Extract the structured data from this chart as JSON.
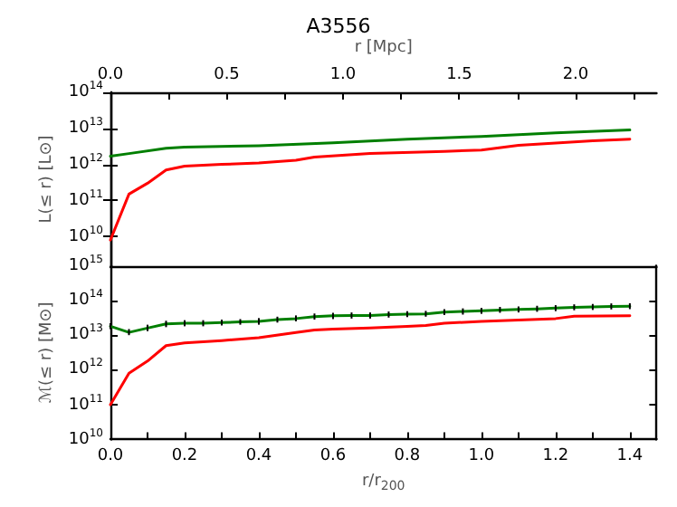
{
  "chart_data": [
    {
      "type": "line",
      "title": "A3556",
      "ylabel": "L(≤ r) [L⊙]",
      "x2label": "r [Mpc]",
      "log": "y",
      "marker": "none",
      "line_style": "solid",
      "tick_labels": "y",
      "xlim": [
        0,
        1.472
      ],
      "ylim": [
        1500000000.0,
        100000000000000.0
      ],
      "x2lim": [
        0,
        2.348
      ],
      "x2ticks": [
        {
          "value": 0,
          "label": "0.0"
        },
        {
          "value": 0.25,
          "label": null
        },
        0.5,
        {
          "value": 0.75,
          "label": null
        },
        {
          "value": 1,
          "label": "1.0"
        },
        {
          "value": 1.25,
          "label": null
        },
        1.5,
        {
          "value": 1.75,
          "label": null
        },
        {
          "value": 2,
          "label": "2.0"
        },
        {
          "value": 2.25,
          "label": null
        }
      ],
      "yticks": [
        {
          "value": 10000000000.0,
          "label": "10$^{10}$"
        },
        {
          "value": 100000000000.0,
          "label": "10$^{11}$"
        },
        {
          "value": 1000000000000.0,
          "label": "10$^{12}$"
        },
        {
          "value": 10000000000000.0,
          "label": "10$^{13}$"
        },
        {
          "value": 100000000000000.0,
          "label": "10$^{14}$"
        }
      ],
      "series": [
        {
          "color": "#007f00",
          "x": [
            0,
            0.05,
            0.15,
            0.2,
            0.4,
            0.6,
            0.8,
            1.0,
            1.2,
            1.4
          ],
          "values": [
            1700000000000.0,
            2000000000000.0,
            2800000000000.0,
            3000000000000.0,
            3300000000000.0,
            4000000000000.0,
            5000000000000.0,
            6000000000000.0,
            7500000000000.0,
            9000000000000.0
          ]
        },
        {
          "color": "#ff0000",
          "x": [
            0,
            0.05,
            0.1,
            0.15,
            0.2,
            0.3,
            0.4,
            0.5,
            0.55,
            0.7,
            0.9,
            1.0,
            1.1,
            1.3,
            1.4
          ],
          "values": [
            8000000000.0,
            150000000000.0,
            300000000000.0,
            700000000000.0,
            900000000000.0,
            1000000000000.0,
            1100000000000.0,
            1300000000000.0,
            1600000000000.0,
            2000000000000.0,
            2300000000000.0,
            2500000000000.0,
            3400000000000.0,
            4500000000000.0,
            5000000000000.0
          ]
        }
      ]
    },
    {
      "type": "line",
      "xlabel": "r/r$_{200}$",
      "ylabel": "ℳ(≤ r) [M⊙]",
      "log": "y",
      "marker": "none",
      "line_style": "solid",
      "xlim": [
        0,
        1.472
      ],
      "xticks": [
        {
          "value": 0,
          "label": "0.0"
        },
        {
          "value": 0.1,
          "label": null
        },
        0.2,
        {
          "value": 0.3,
          "label": null
        },
        0.4,
        {
          "value": 0.5,
          "label": null
        },
        0.6,
        {
          "value": 0.7,
          "label": null
        },
        0.8,
        {
          "value": 0.9,
          "label": null
        },
        {
          "value": 1,
          "label": "1.0"
        },
        {
          "value": 1.1,
          "label": null
        },
        1.2,
        {
          "value": 1.3,
          "label": null
        },
        1.4
      ],
      "ylim": [
        10000000000.0,
        1000000000000000.0
      ],
      "yticks": [
        {
          "value": 10000000000.0,
          "label": "10$^{10}$"
        },
        {
          "value": 100000000000.0,
          "label": "10$^{11}$"
        },
        {
          "value": 1000000000000.0,
          "label": "10$^{12}$"
        },
        {
          "value": 10000000000000.0,
          "label": "10$^{13}$"
        },
        {
          "value": 100000000000000.0,
          "label": "10$^{14}$"
        },
        {
          "value": 1000000000000000.0,
          "label": "10$^{15}$"
        }
      ],
      "series": [
        {
          "color": "#007f00",
          "x": [
            0,
            0.05,
            0.1,
            0.15,
            0.2,
            0.25,
            0.3,
            0.35,
            0.4,
            0.45,
            0.5,
            0.55,
            0.6,
            0.65,
            0.7,
            0.75,
            0.8,
            0.85,
            0.9,
            0.95,
            1.0,
            1.05,
            1.1,
            1.15,
            1.2,
            1.25,
            1.3,
            1.35,
            1.4
          ],
          "values": [
            18000000000000.0,
            12000000000000.0,
            16000000000000.0,
            21000000000000.0,
            22000000000000.0,
            22000000000000.0,
            23000000000000.0,
            24000000000000.0,
            25000000000000.0,
            28000000000000.0,
            30000000000000.0,
            34000000000000.0,
            36000000000000.0,
            37000000000000.0,
            37000000000000.0,
            39000000000000.0,
            40000000000000.0,
            41000000000000.0,
            46000000000000.0,
            48000000000000.0,
            50000000000000.0,
            53000000000000.0,
            55000000000000.0,
            57000000000000.0,
            60000000000000.0,
            63000000000000.0,
            65000000000000.0,
            67000000000000.0,
            68000000000000.0
          ],
          "errors": [
            [
              15000000000000.0,
              22000000000000.0
            ],
            [
              10000000000000.0,
              15000000000000.0
            ],
            [
              13000000000000.0,
              20000000000000.0
            ],
            [
              17000000000000.0,
              26000000000000.0
            ],
            [
              18000000000000.0,
              27000000000000.0
            ],
            [
              18000000000000.0,
              27000000000000.0
            ],
            [
              19000000000000.0,
              28000000000000.0
            ],
            [
              20000000000000.0,
              29000000000000.0
            ],
            [
              20000000000000.0,
              31000000000000.0
            ],
            [
              23000000000000.0,
              34000000000000.0
            ],
            [
              25000000000000.0,
              37000000000000.0
            ],
            [
              28000000000000.0,
              42000000000000.0
            ],
            [
              29000000000000.0,
              44000000000000.0
            ],
            [
              30000000000000.0,
              45000000000000.0
            ],
            [
              30000000000000.0,
              45000000000000.0
            ],
            [
              32000000000000.0,
              48000000000000.0
            ],
            [
              33000000000000.0,
              49000000000000.0
            ],
            [
              34000000000000.0,
              50000000000000.0
            ],
            [
              38000000000000.0,
              56000000000000.0
            ],
            [
              39000000000000.0,
              59000000000000.0
            ],
            [
              41000000000000.0,
              61000000000000.0
            ],
            [
              44000000000000.0,
              65000000000000.0
            ],
            [
              45000000000000.0,
              67000000000000.0
            ],
            [
              47000000000000.0,
              70000000000000.0
            ],
            [
              49000000000000.0,
              73000000000000.0
            ],
            [
              52000000000000.0,
              77000000000000.0
            ],
            [
              53000000000000.0,
              79000000000000.0
            ],
            [
              55000000000000.0,
              82000000000000.0
            ],
            [
              56000000000000.0,
              83000000000000.0
            ]
          ]
        },
        {
          "color": "#ff0000",
          "x": [
            0,
            0.05,
            0.1,
            0.15,
            0.2,
            0.3,
            0.4,
            0.5,
            0.55,
            0.6,
            0.7,
            0.8,
            0.85,
            0.9,
            1.0,
            1.2,
            1.25,
            1.4
          ],
          "values": [
            100000000000.0,
            800000000000.0,
            1800000000000.0,
            5000000000000.0,
            6000000000000.0,
            7000000000000.0,
            8500000000000.0,
            12000000000000.0,
            14000000000000.0,
            15000000000000.0,
            16000000000000.0,
            18000000000000.0,
            19000000000000.0,
            22000000000000.0,
            25000000000000.0,
            30000000000000.0,
            35000000000000.0,
            36000000000000.0
          ]
        }
      ]
    }
  ]
}
